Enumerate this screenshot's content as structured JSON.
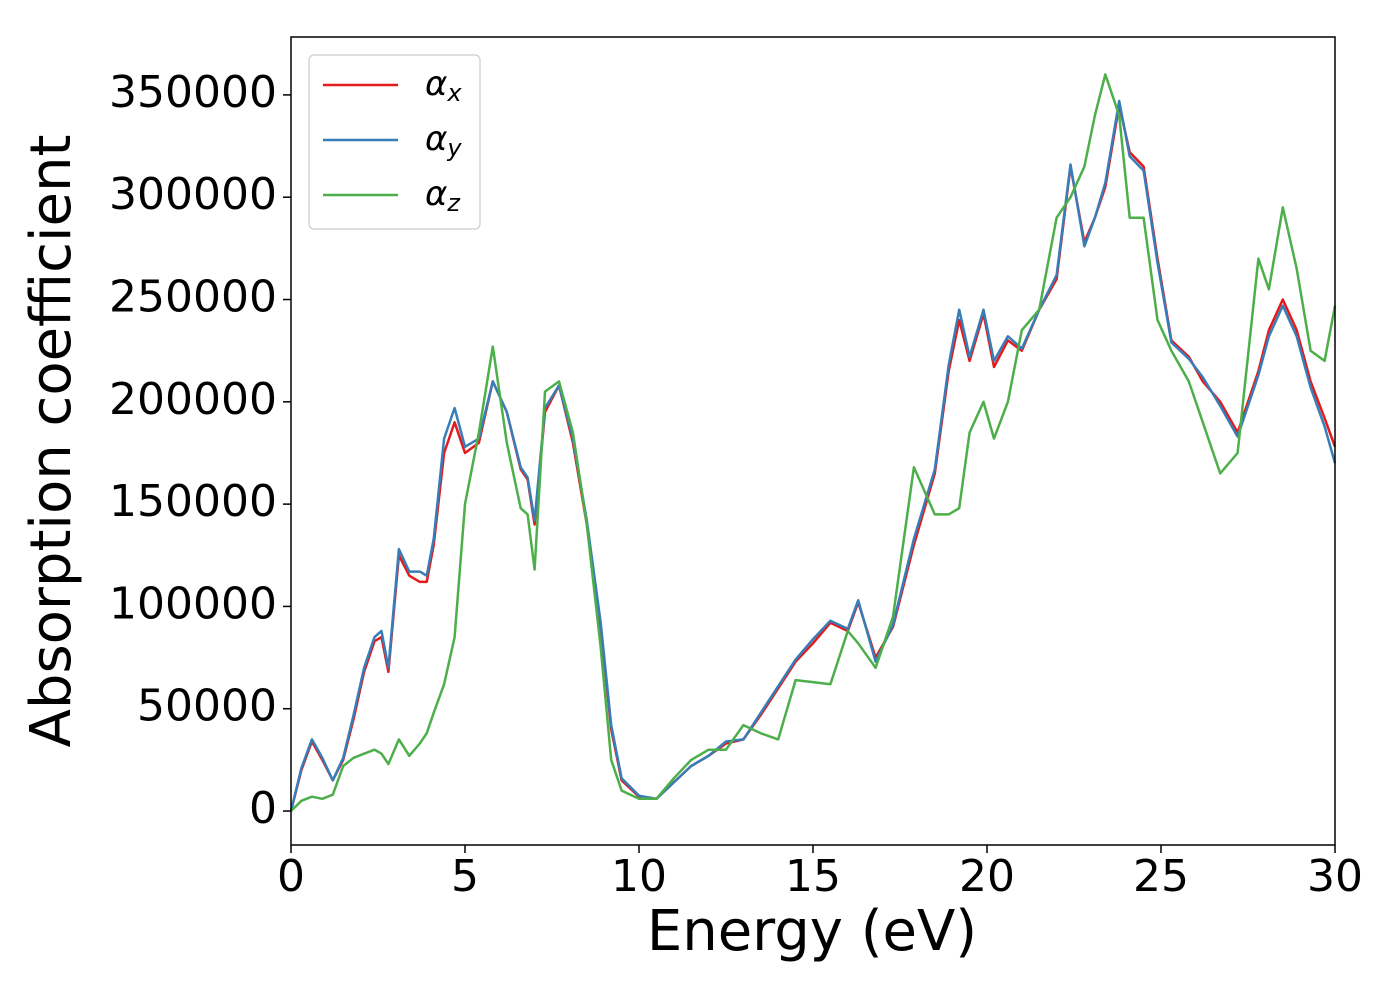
{
  "chart_data": {
    "type": "line",
    "xlabel": "Energy (eV)",
    "ylabel": "Absorption coefficient",
    "x": [
      0,
      0.3,
      0.6,
      0.9,
      1.2,
      1.5,
      1.8,
      2.1,
      2.4,
      2.6,
      2.8,
      3.1,
      3.4,
      3.7,
      3.9,
      4.1,
      4.4,
      4.7,
      5.0,
      5.4,
      5.8,
      6.2,
      6.6,
      6.8,
      7.0,
      7.3,
      7.7,
      8.1,
      8.5,
      8.9,
      9.2,
      9.5,
      10.0,
      10.5,
      11.0,
      11.5,
      12.0,
      12.5,
      13.0,
      13.5,
      14.0,
      14.5,
      15.0,
      15.5,
      16.0,
      16.3,
      16.8,
      17.3,
      17.9,
      18.5,
      18.9,
      19.2,
      19.5,
      19.9,
      20.2,
      20.6,
      21.0,
      21.5,
      22.0,
      22.4,
      22.8,
      23.1,
      23.4,
      23.8,
      24.1,
      24.5,
      24.9,
      25.3,
      25.8,
      26.2,
      26.7,
      27.2,
      27.8,
      28.1,
      28.5,
      28.9,
      29.3,
      29.7,
      30.0
    ],
    "series": [
      {
        "name": "αx",
        "color": "#e41a1c",
        "values": [
          0,
          20000,
          34000,
          25000,
          15000,
          25000,
          45000,
          68000,
          83000,
          85000,
          68000,
          125000,
          115000,
          112000,
          112000,
          130000,
          175000,
          190000,
          175000,
          180000,
          210000,
          195000,
          167000,
          162000,
          140000,
          195000,
          208000,
          180000,
          140000,
          90000,
          40000,
          15000,
          7000,
          6000,
          14000,
          22000,
          27000,
          33000,
          35000,
          47000,
          60000,
          73000,
          82000,
          92000,
          88000,
          102000,
          75000,
          90000,
          130000,
          165000,
          215000,
          240000,
          220000,
          243000,
          217000,
          230000,
          225000,
          245000,
          260000,
          315000,
          278000,
          290000,
          305000,
          345000,
          322000,
          315000,
          270000,
          230000,
          222000,
          210000,
          200000,
          185000,
          215000,
          235000,
          250000,
          235000,
          210000,
          192000,
          178000
        ]
      },
      {
        "name": "αy",
        "color": "#377eb8",
        "values": [
          0,
          21000,
          35000,
          26000,
          15000,
          26000,
          47000,
          70000,
          85000,
          88000,
          70000,
          128000,
          117000,
          117000,
          115000,
          133000,
          182000,
          197000,
          178000,
          182000,
          210000,
          195000,
          168000,
          163000,
          142000,
          197000,
          208000,
          182000,
          142000,
          92000,
          42000,
          16000,
          7500,
          6000,
          14000,
          22000,
          27000,
          34000,
          35000,
          48000,
          61000,
          74000,
          84000,
          93000,
          89000,
          103000,
          73000,
          91000,
          133000,
          167000,
          218000,
          245000,
          222000,
          245000,
          220000,
          232000,
          226000,
          245000,
          262000,
          316000,
          276000,
          290000,
          307000,
          347000,
          320000,
          313000,
          268000,
          229000,
          221000,
          212000,
          198000,
          183000,
          213000,
          232000,
          247000,
          232000,
          207000,
          188000,
          170000
        ]
      },
      {
        "name": "αz",
        "color": "#4daf4a",
        "values": [
          0,
          5000,
          7000,
          6000,
          8000,
          22000,
          26000,
          28000,
          30000,
          28000,
          23000,
          35000,
          27000,
          33000,
          38000,
          48000,
          62000,
          85000,
          150000,
          185000,
          227000,
          180000,
          148000,
          145000,
          118000,
          205000,
          210000,
          185000,
          140000,
          80000,
          25000,
          10000,
          6000,
          6000,
          16000,
          25000,
          30000,
          30000,
          42000,
          38000,
          35000,
          64000,
          63000,
          62000,
          88000,
          82000,
          70000,
          95000,
          168000,
          145000,
          145000,
          148000,
          185000,
          200000,
          182000,
          200000,
          235000,
          245000,
          290000,
          300000,
          315000,
          340000,
          360000,
          340000,
          290000,
          290000,
          240000,
          225000,
          210000,
          190000,
          165000,
          175000,
          270000,
          255000,
          295000,
          265000,
          225000,
          220000,
          247000
        ]
      }
    ],
    "xlim": [
      0,
      30
    ],
    "xticks": [
      0,
      5,
      10,
      15,
      20,
      25,
      30
    ],
    "ylim": [
      -16600,
      378300
    ],
    "yticks": [
      0,
      50000,
      100000,
      150000,
      200000,
      250000,
      300000,
      350000
    ],
    "grid": false,
    "legend": "upper left"
  }
}
